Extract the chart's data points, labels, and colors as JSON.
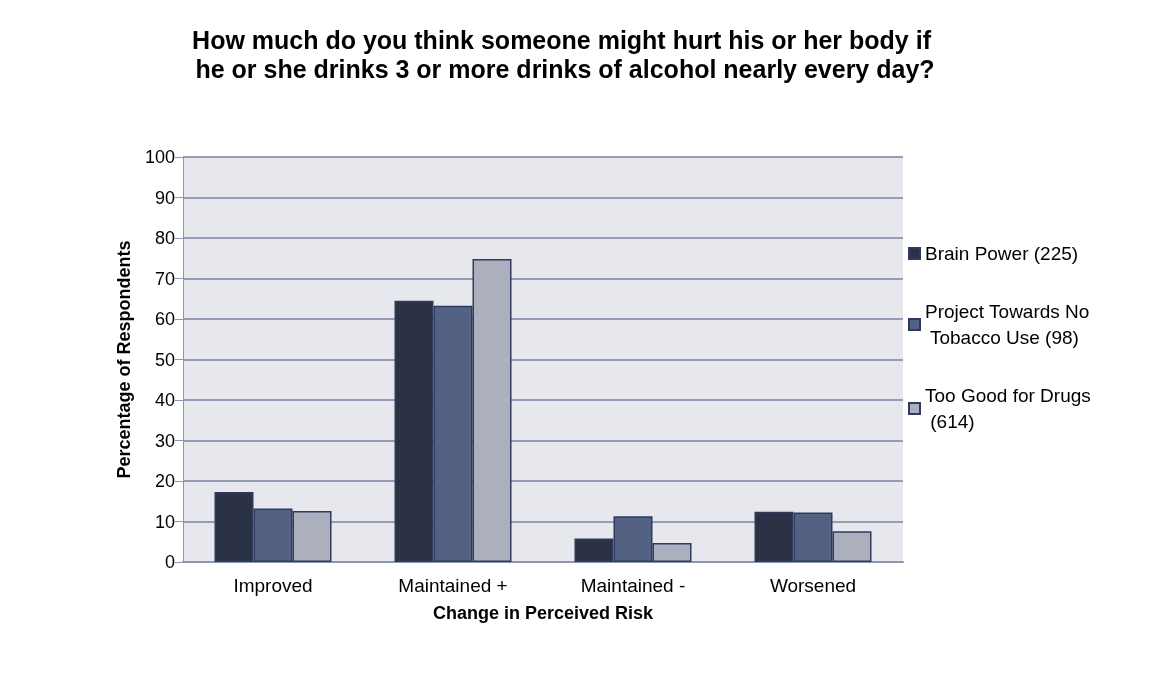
{
  "chart_data": {
    "type": "bar",
    "title": "How much do you think someone might hurt his or her body if he or she drinks 3 or more drinks of alcohol nearly every day?",
    "xlabel": "Change in Perceived Risk",
    "ylabel": "Percentage of Respondents",
    "categories": [
      "Improved",
      "Maintained +",
      "Maintained -",
      "Worsened"
    ],
    "series": [
      {
        "name": "Brain Power (225)",
        "color": "#2c3246",
        "values": [
          17.3,
          64.5,
          5.8,
          12.4
        ]
      },
      {
        "name": "Project Towards No Tobacco Use (98)",
        "color": "#536283",
        "values": [
          13.2,
          63.3,
          11.3,
          12.2
        ]
      },
      {
        "name": "Too Good for Drugs (614)",
        "color": "#abb0bc",
        "values": [
          12.6,
          74.8,
          4.7,
          7.6
        ]
      }
    ],
    "ylim": [
      0,
      100
    ],
    "yticks": [
      0,
      10,
      20,
      30,
      40,
      50,
      60,
      70,
      80,
      90,
      100
    ],
    "grid": "y",
    "legend": "right"
  }
}
